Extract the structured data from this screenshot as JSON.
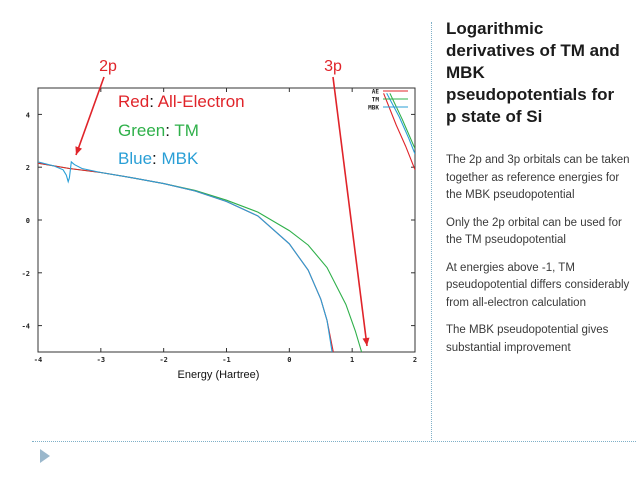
{
  "slide": {
    "title": "Logarithmic derivatives of TM and MBK pseudopotentials for p state of Si",
    "bullets": [
      "The 2p and 3p orbitals can be taken together as reference energies for the MBK pseudopotential",
      "Only the 2p orbital can be used for the TM pseudopotential",
      "At energies above -1, TM pseudopotential differs considerably from all-electron calculation",
      "The MBK pseudopotential gives substantial improvement"
    ]
  },
  "legend_text": {
    "red": {
      "key": "Red",
      "value": "All-Electron",
      "color": "#e0242a"
    },
    "green": {
      "key": "Green",
      "value": "TM",
      "color": "#2fb04a"
    },
    "blue": {
      "key": "Blue",
      "value": "MBK",
      "color": "#2a9fd6"
    }
  },
  "annotations": {
    "label_2p": "2p",
    "label_3p": "3p",
    "color": "#e0242a"
  },
  "chart_data": {
    "type": "line",
    "xlabel": "Energy (Hartree)",
    "ylabel": "",
    "xlim": [
      -4,
      2
    ],
    "ylim": [
      -5,
      5
    ],
    "xticks": [
      "-4",
      "-3",
      "-2",
      "-1",
      "0",
      "1",
      "2"
    ],
    "yticks": [
      "4",
      "2",
      "0",
      "-2",
      "-4"
    ],
    "legend_entries": [
      "AE",
      "TM",
      "MBK"
    ],
    "series": [
      {
        "name": "AE",
        "color": "#e0242a",
        "segments": [
          {
            "x": [
              -4.0,
              -3.5,
              -3.0,
              -2.5,
              -2.0,
              -1.5,
              -1.0,
              -0.5,
              0.0,
              0.3,
              0.5,
              0.6,
              0.7
            ],
            "y": [
              2.15,
              1.95,
              1.8,
              1.6,
              1.38,
              1.1,
              0.7,
              0.15,
              -0.9,
              -1.9,
              -3.0,
              -3.8,
              -5.0
            ]
          },
          {
            "x": [
              1.5,
              1.7,
              1.85,
              2.0
            ],
            "y": [
              4.8,
              3.6,
              2.8,
              1.9
            ]
          }
        ]
      },
      {
        "name": "TM",
        "color": "#2fb04a",
        "segments": [
          {
            "x": [
              -4.0,
              -3.5,
              -3.0,
              -2.5,
              -2.0,
              -1.5,
              -1.0,
              -0.5,
              0.0,
              0.3,
              0.6,
              0.9,
              1.05,
              1.15
            ],
            "y": [
              2.15,
              1.95,
              1.8,
              1.6,
              1.38,
              1.12,
              0.75,
              0.3,
              -0.4,
              -0.95,
              -1.8,
              -3.2,
              -4.2,
              -5.0
            ]
          },
          {
            "x": [
              1.6,
              1.8,
              2.0
            ],
            "y": [
              4.8,
              3.8,
              2.7
            ]
          }
        ]
      },
      {
        "name": "MBK",
        "color": "#2a9fd6",
        "segments": [
          {
            "x": [
              -4.0,
              -3.75,
              -3.6,
              -3.55,
              -3.52,
              -3.5,
              -3.47,
              -3.42,
              -3.3,
              -3.0,
              -2.5,
              -2.0,
              -1.5,
              -1.0,
              -0.5,
              0.0,
              0.3,
              0.5,
              0.6,
              0.68
            ],
            "y": [
              2.2,
              2.05,
              1.9,
              1.7,
              1.45,
              1.6,
              2.2,
              2.1,
              1.95,
              1.8,
              1.6,
              1.38,
              1.1,
              0.7,
              0.15,
              -0.9,
              -1.9,
              -3.0,
              -3.8,
              -5.0
            ]
          },
          {
            "x": [
              1.55,
              1.75,
              1.9,
              2.0
            ],
            "y": [
              4.8,
              3.9,
              3.1,
              2.5
            ]
          }
        ]
      }
    ]
  }
}
